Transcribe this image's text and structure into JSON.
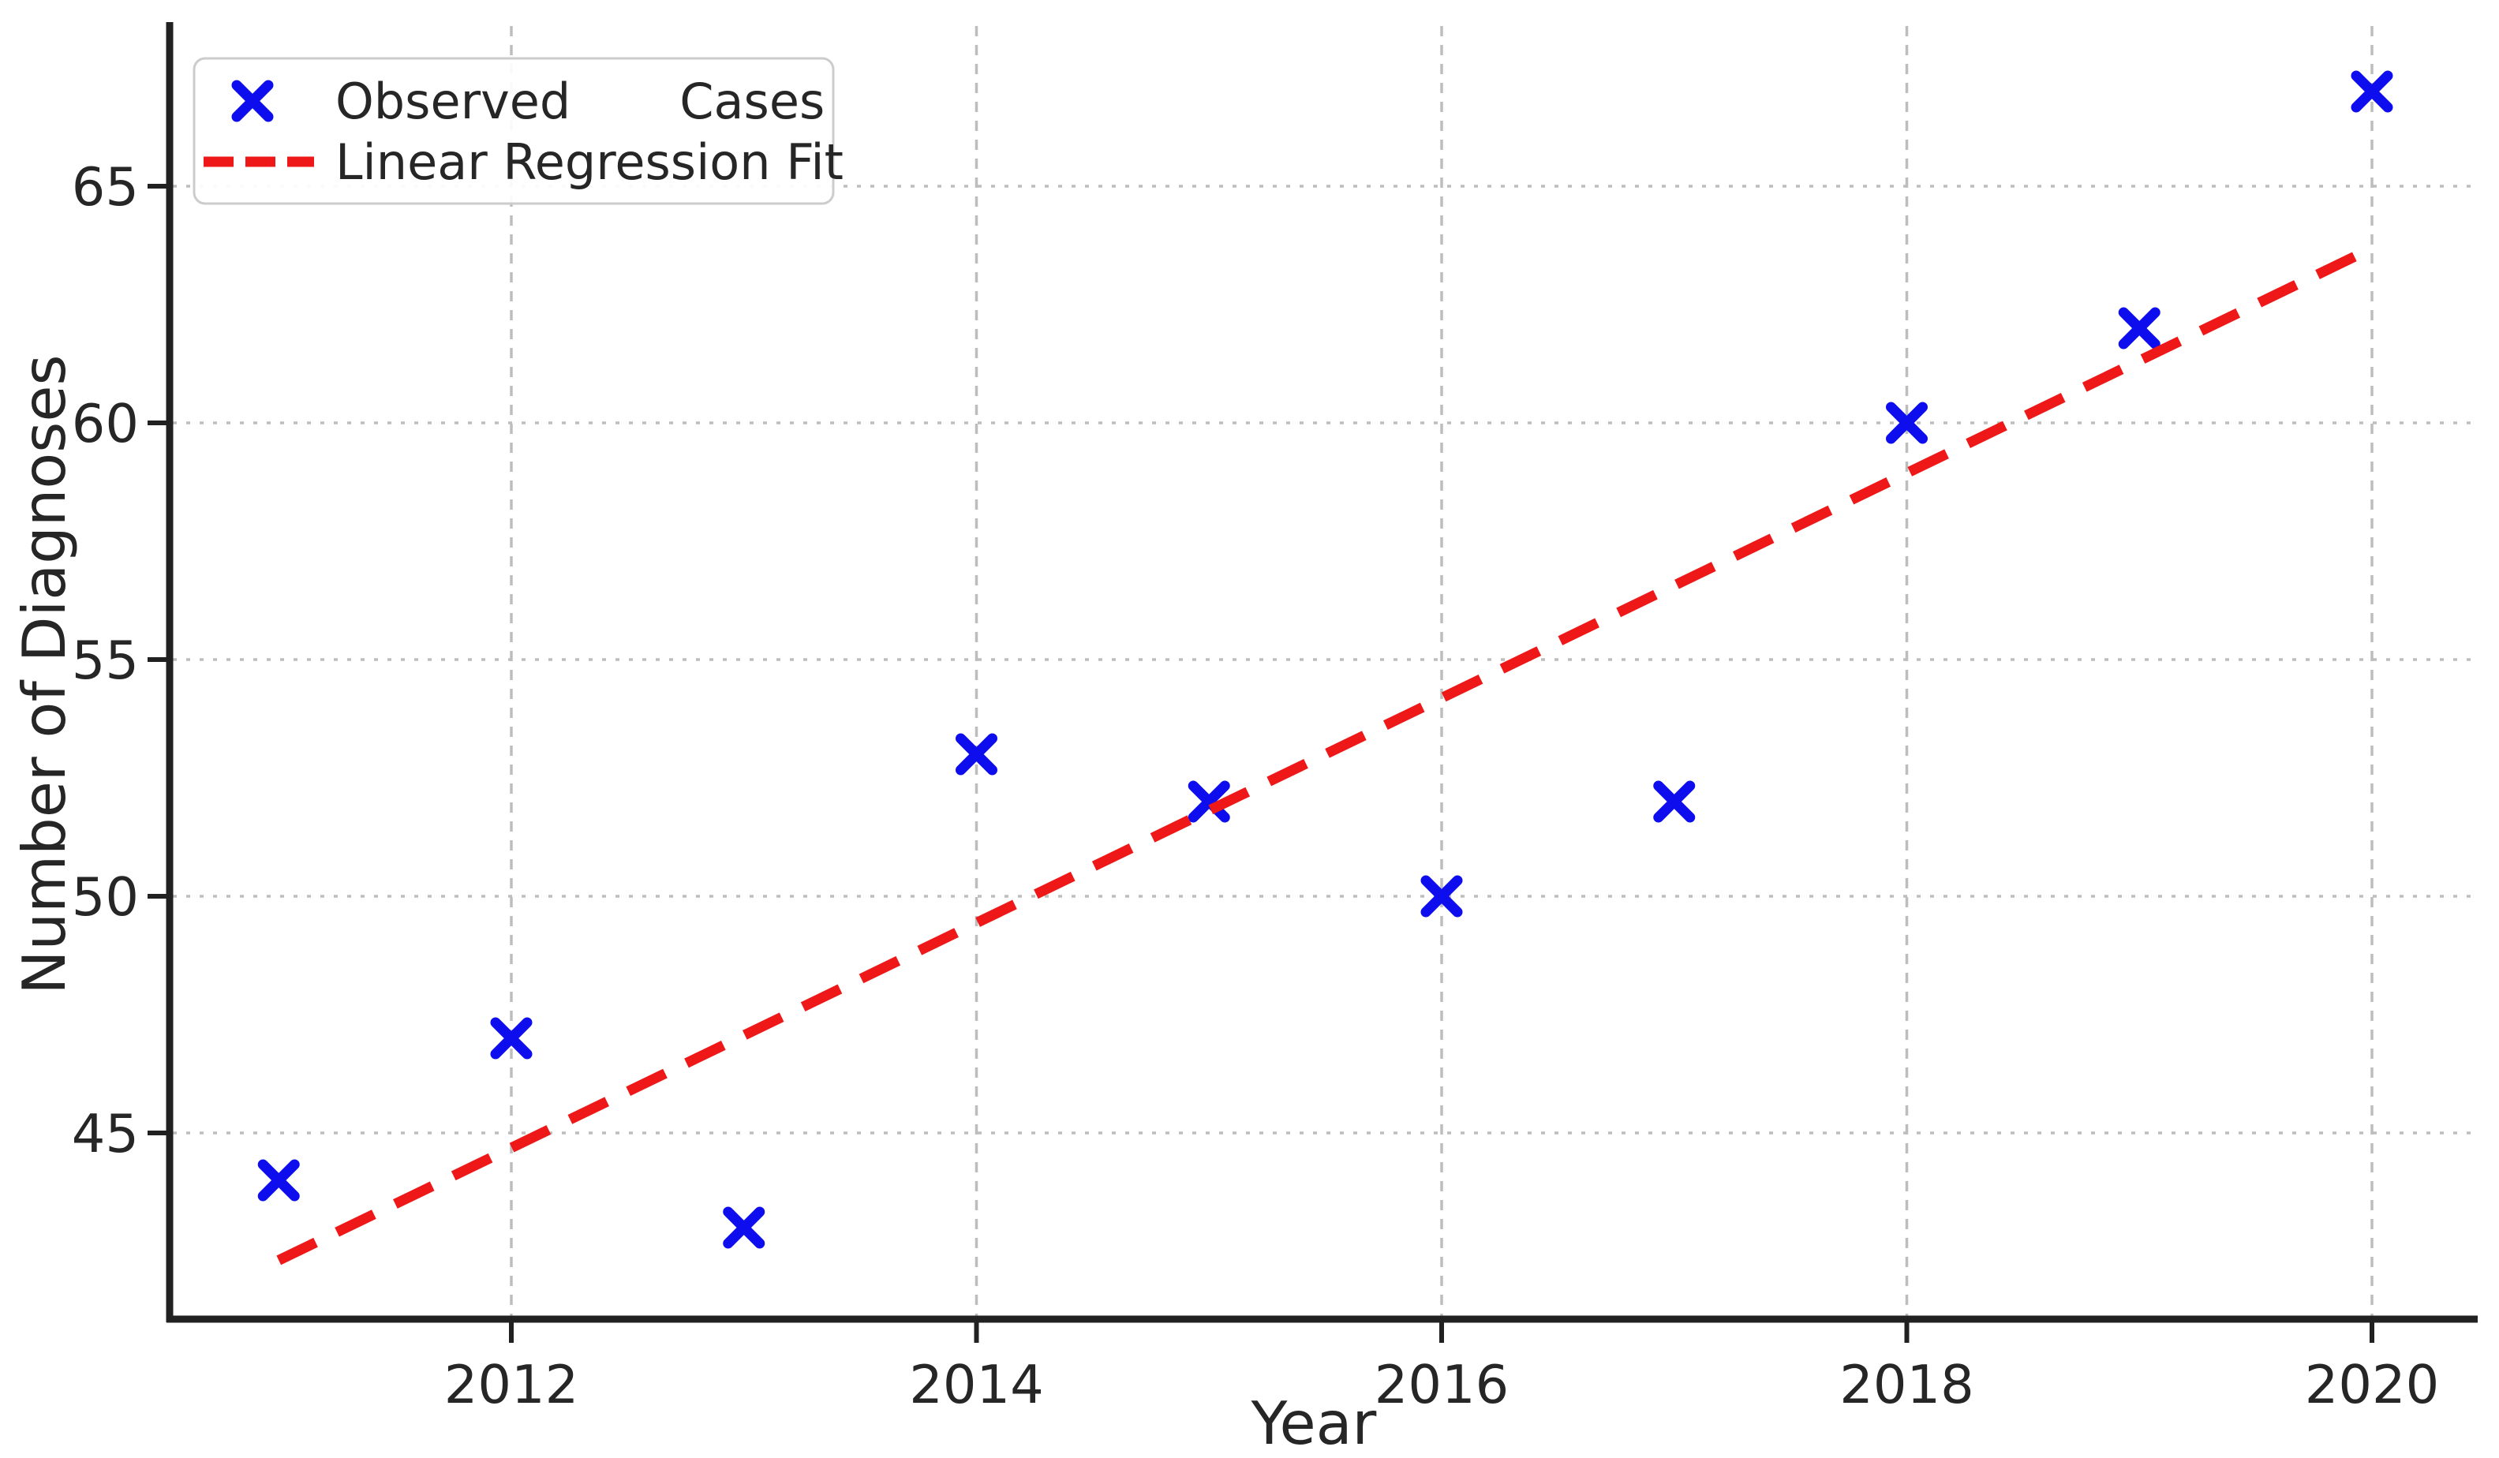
{
  "figure": {
    "background": "#ffffff",
    "xlabel": "Year",
    "ylabel": "Number of Diagnoses",
    "legend": {
      "position": "upper left",
      "border_color": "#cccccc",
      "items": [
        {
          "label": "Observed       Cases",
          "marker": "x-marker",
          "color": "#0d0dee"
        },
        {
          "label": "Linear Regression Fit",
          "marker": "dashed-line",
          "color": "#ee1818"
        }
      ]
    }
  },
  "chart_data": {
    "type": "scatter",
    "title": "",
    "xlabel": "Year",
    "ylabel": "Number of Diagnoses",
    "x_ticks": [
      2012,
      2014,
      2016,
      2018,
      2020
    ],
    "y_ticks": [
      45,
      50,
      55,
      60,
      65
    ],
    "xlim": [
      2010.53,
      2020.45
    ],
    "ylim": [
      41.1,
      68.4
    ],
    "grid": true,
    "legend_position": "upper left",
    "series": [
      {
        "name": "Observed Cases",
        "kind": "scatter",
        "marker": "x",
        "color": "#0d0dee",
        "x": [
          2011,
          2012,
          2013,
          2014,
          2015,
          2016,
          2017,
          2018,
          2019,
          2020
        ],
        "y": [
          44,
          47,
          43,
          53,
          52,
          50,
          52,
          60,
          62,
          67
        ]
      },
      {
        "name": "Linear Regression Fit",
        "kind": "line",
        "style": "dashed",
        "color": "#ee1818",
        "x": [
          2011,
          2020
        ],
        "y": [
          42.31,
          63.69
        ]
      }
    ],
    "style_colors": {
      "grid": "#bdbdbd",
      "spine": "#212121",
      "tick_text": "#262626"
    }
  }
}
